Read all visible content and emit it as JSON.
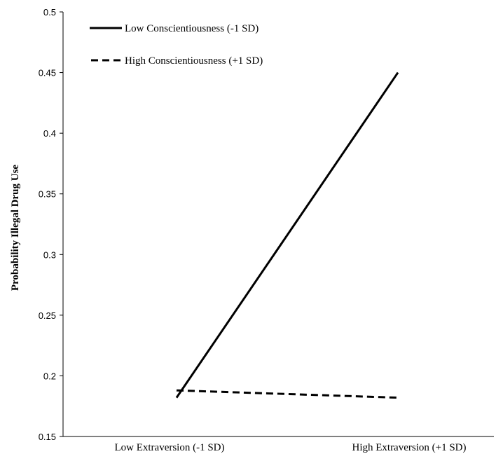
{
  "chart_data": {
    "type": "line",
    "title": "",
    "xlabel": "",
    "ylabel": "Probability  Illegal Drug Use",
    "categories": [
      "Low Extraversion (-1 SD)",
      "High Extraversion (+1 SD)"
    ],
    "ylim": [
      0.15,
      0.5
    ],
    "yticks": [
      0.15,
      0.2,
      0.25,
      0.3,
      0.35,
      0.4,
      0.45,
      0.5
    ],
    "ytick_labels": [
      "0.15",
      "0.2",
      "0.25",
      "0.3",
      "0.35",
      "0.4",
      "0.45",
      "0.5"
    ],
    "grid": false,
    "legend_position": "top-left",
    "series": [
      {
        "name": "Low Conscientiousness (-1 SD)",
        "values": [
          0.182,
          0.45
        ],
        "line_style": "solid",
        "color": "#000000"
      },
      {
        "name": "High Conscientiousness (+1 SD)",
        "values": [
          0.188,
          0.182
        ],
        "line_style": "dashed",
        "color": "#000000"
      }
    ]
  }
}
